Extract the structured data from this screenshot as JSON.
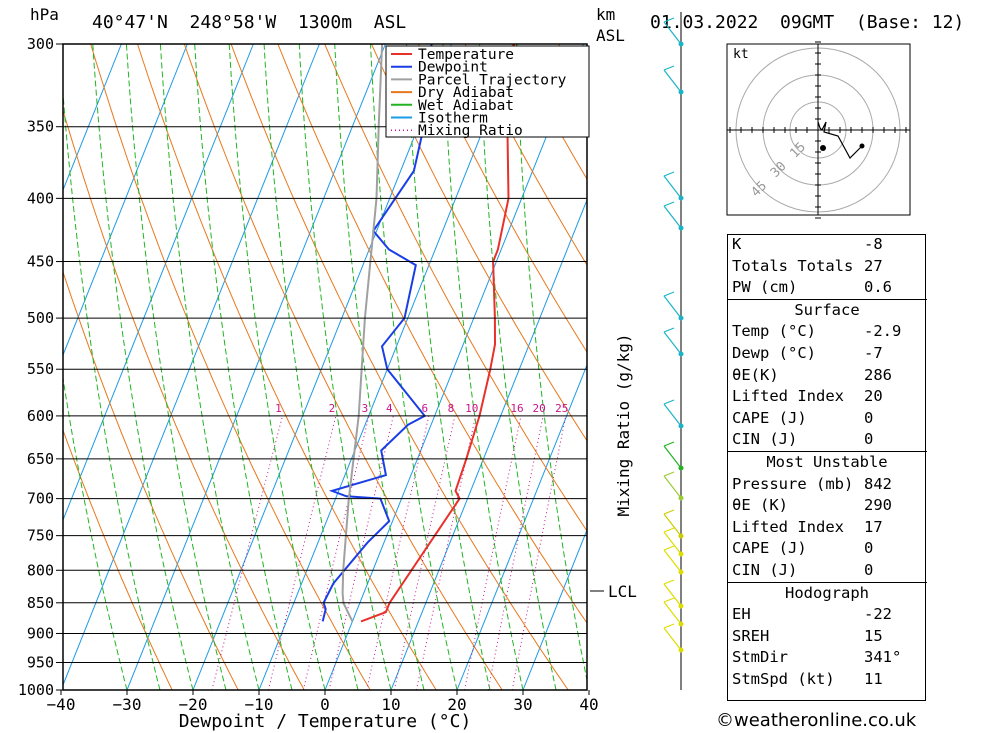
{
  "header": {
    "location": "40°47'N  248°58'W  1300m  ASL",
    "datetime": "01.03.2022  09GMT  (Base: 12)",
    "pressure_unit": "hPa",
    "height_unit": "km",
    "height_unit2": "ASL",
    "lcl_label": "LCL",
    "mixing_ratio_axis": "Mixing Ratio (g/kg)",
    "hodograph_unit": "kt"
  },
  "legend": [
    {
      "label": "Temperature",
      "color": "#e8312b"
    },
    {
      "label": "Dewpoint",
      "color": "#1a3ee6"
    },
    {
      "label": "Parcel Trajectory",
      "color": "#a0a0a0"
    },
    {
      "label": "Dry Adiabat",
      "color": "#e8781e"
    },
    {
      "label": "Wet Adiabat",
      "color": "#22b422"
    },
    {
      "label": "Isotherm",
      "color": "#1e9be6"
    },
    {
      "label": "Mixing Ratio",
      "color": "#c8148c"
    }
  ],
  "chart_data": {
    "type": "line",
    "title": "40°47'N  248°58'W  1300m  ASL",
    "xlabel": "Dewpoint / Temperature (°C)",
    "ylabel": "hPa",
    "xlim": [
      -40,
      40
    ],
    "ylim": [
      1000,
      300
    ],
    "y_scale": "log",
    "x_ticks": [
      -40,
      -30,
      -20,
      -10,
      0,
      10,
      20,
      30,
      40
    ],
    "y_ticks": [
      300,
      350,
      400,
      450,
      500,
      550,
      600,
      650,
      700,
      750,
      800,
      850,
      900,
      950,
      1000
    ],
    "x_tick_labels": [
      "−40",
      "−30",
      "−20",
      "−10",
      "0",
      "10",
      "20",
      "30",
      "40"
    ],
    "mixing_ratio_labels": [
      "1",
      "2",
      "3",
      "4",
      "6",
      "8",
      "10",
      "16",
      "20",
      "25"
    ],
    "series": [
      {
        "name": "Temperature",
        "color": "#e8312b",
        "p": [
          880,
          865,
          850,
          700,
          690,
          650,
          600,
          550,
          525,
          500,
          450,
          440,
          400,
          350,
          320,
          300
        ],
        "x": [
          1.3,
          4.5,
          4.5,
          8.8,
          7.7,
          7.4,
          6.8,
          5.6,
          4.8,
          3.2,
          -0.5,
          -0.5,
          -2.0,
          -6.5,
          -8.5,
          -10.5
        ]
      },
      {
        "name": "Dewpoint",
        "color": "#1a3ee6",
        "p": [
          880,
          860,
          850,
          820,
          760,
          730,
          700,
          697,
          690,
          670,
          640,
          610,
          600,
          550,
          527,
          500,
          453,
          440,
          425,
          380,
          330,
          315,
          300
        ],
        "x": [
          -4.5,
          -4.8,
          -5.5,
          -5.2,
          -2.5,
          -0.5,
          -3.2,
          -8.5,
          -11.0,
          -3.8,
          -6.0,
          -3.5,
          -1.5,
          -10.0,
          -12.2,
          -10.5,
          -12.0,
          -17.0,
          -20.5,
          -18.0,
          -20.0,
          -22.0,
          -23.0
        ]
      },
      {
        "name": "Parcel Trajectory",
        "color": "#a0a0a0",
        "p": [
          880,
          850,
          835,
          800,
          700,
          600,
          500,
          400,
          350,
          300
        ],
        "x": [
          0.0,
          -2.5,
          -3.2,
          -4.5,
          -8.0,
          -11.5,
          -16.5,
          -22.0,
          -26.0,
          -30.5
        ]
      }
    ]
  },
  "hodograph": {
    "unit": "kt",
    "ring_labels": [
      "15",
      "30",
      "45"
    ]
  },
  "indices": {
    "k_label": "K",
    "k_value": "-8",
    "tt_label": "Totals Totals",
    "tt_value": "27",
    "pw_label": "PW (cm)",
    "pw_value": "0.6",
    "surface_title": "Surface",
    "temp_label": "Temp (°C)",
    "temp_value": "-2.9",
    "dewp_label": "Dewp (°C)",
    "dewp_value": "-7",
    "theta_label": "θE(K)",
    "theta_value": "286",
    "li_label": "Lifted Index",
    "li_value": "20",
    "cape_label": "CAPE (J)",
    "cape_value": "0",
    "cin_label": "CIN (J)",
    "cin_value": "0",
    "mu_title": "Most Unstable",
    "mu_pressure_label": "Pressure (mb)",
    "mu_pressure_value": "842",
    "mu_theta_label": "θE (K)",
    "mu_theta_value": "290",
    "mu_li_label": "Lifted Index",
    "mu_li_value": "17",
    "mu_cape_label": "CAPE (J)",
    "mu_cape_value": "0",
    "mu_cin_label": "CIN (J)",
    "mu_cin_value": "0",
    "hodo_title": "Hodograph",
    "eh_label": "EH",
    "eh_value": "-22",
    "sreh_label": "SREH",
    "sreh_value": "15",
    "stmdir_label": "StmDir",
    "stmdir_value": "341°",
    "stmspd_label": "StmSpd (kt)",
    "stmspd_value": "11"
  },
  "footer": {
    "credit": "©weatheronline.co.uk"
  }
}
